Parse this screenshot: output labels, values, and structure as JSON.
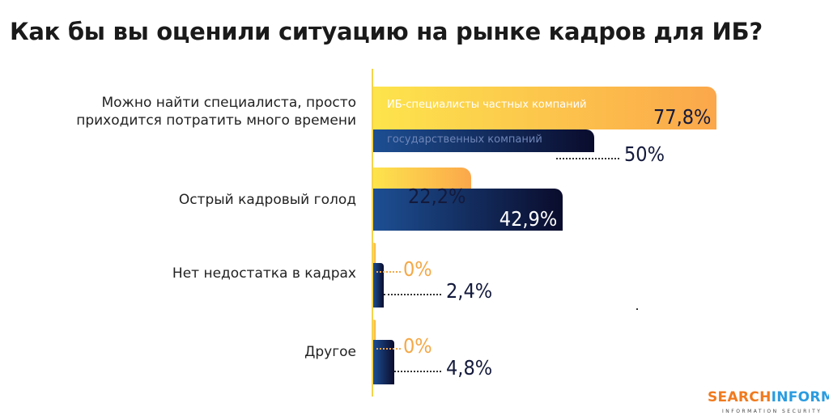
{
  "title": "Как бы вы оценили ситуацию на рынке кадров для ИБ?",
  "chart_data": {
    "type": "bar",
    "orientation": "horizontal",
    "categories": [
      "Можно найти специалиста, просто приходится потратить много времени",
      "Острый кадровый голод",
      "Нет недостатка в кадрах",
      "Другое"
    ],
    "category_lines": [
      [
        "Можно найти специалиста, просто",
        "приходится потратить много времени"
      ],
      [
        "Острый кадровый голод"
      ],
      [
        "Нет недостатка в кадрах"
      ],
      [
        "Другое"
      ]
    ],
    "series": [
      {
        "name": "ИБ-специалисты частных компаний",
        "values": [
          77.8,
          22.2,
          0,
          0
        ],
        "labels": [
          "77,8%",
          "22,2%",
          "0%",
          "0%"
        ],
        "color": "#fba74b"
      },
      {
        "name": "государственных компаний",
        "values": [
          50,
          42.9,
          2.4,
          4.8
        ],
        "labels": [
          "50%",
          "42,9%",
          "2,4%",
          "4,8%"
        ],
        "color": "#0a0c2c"
      }
    ],
    "xlim": [
      0,
      80
    ],
    "grid": false,
    "legend": "inside bars"
  },
  "logo": {
    "part1": "SEARCH",
    "part2": "INFORM",
    "tagline": "INFORMATION SECURITY",
    "color1": "#f07a1e",
    "color2": "#2a9ce0"
  }
}
